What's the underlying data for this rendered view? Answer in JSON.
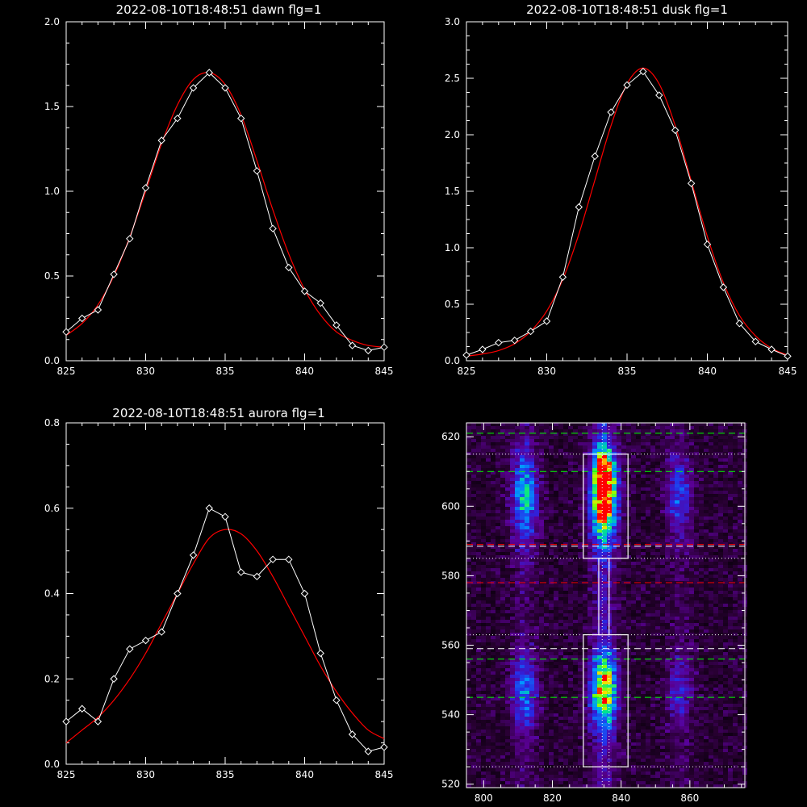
{
  "colors": {
    "background": "#000000",
    "axes": "#ffffff",
    "data": "#ffffff",
    "fit": "#ff0000",
    "guide_green": "#00ff00",
    "guide_red": "#ff0000"
  },
  "chart_data": [
    {
      "type": "line",
      "title": "2022-08-10T18:48:51 dawn flg=1",
      "xlim": [
        825,
        845
      ],
      "ylim": [
        0,
        2.0
      ],
      "xticks": [
        "825",
        "830",
        "835",
        "840",
        "845"
      ],
      "yticks": [
        "0.0",
        "0.5",
        "1.0",
        "1.5",
        "2.0"
      ],
      "xtick_values": [
        825,
        830,
        835,
        840,
        845
      ],
      "ytick_values": [
        0,
        0.5,
        1.0,
        1.5,
        2.0
      ],
      "grid": false,
      "series": [
        {
          "role": "data",
          "marker": "diamond",
          "color": "#ffffff",
          "x": [
            825,
            826,
            827,
            828,
            829,
            830,
            831,
            832,
            833,
            834,
            835,
            836,
            837,
            838,
            839,
            840,
            841,
            842,
            843,
            844,
            845
          ],
          "y": [
            0.17,
            0.25,
            0.3,
            0.51,
            0.72,
            1.02,
            1.3,
            1.43,
            1.61,
            1.7,
            1.61,
            1.43,
            1.12,
            0.78,
            0.55,
            0.41,
            0.34,
            0.21,
            0.09,
            0.06,
            0.08
          ]
        },
        {
          "role": "fit",
          "color": "#ff0000",
          "x": [
            825,
            826,
            827,
            828,
            829,
            830,
            831,
            832,
            833,
            834,
            835,
            836,
            837,
            838,
            839,
            840,
            841,
            842,
            843,
            844,
            845
          ],
          "y": [
            0.15,
            0.22,
            0.33,
            0.5,
            0.73,
            1.0,
            1.28,
            1.51,
            1.66,
            1.7,
            1.63,
            1.45,
            1.18,
            0.89,
            0.63,
            0.42,
            0.27,
            0.17,
            0.12,
            0.09,
            0.08
          ]
        }
      ]
    },
    {
      "type": "line",
      "title": "2022-08-10T18:48:51 dusk flg=1",
      "xlim": [
        825,
        845
      ],
      "ylim": [
        0,
        3.0
      ],
      "xticks": [
        "825",
        "830",
        "835",
        "840",
        "845"
      ],
      "yticks": [
        "0.0",
        "0.5",
        "1.0",
        "1.5",
        "2.0",
        "2.5",
        "3.0"
      ],
      "xtick_values": [
        825,
        830,
        835,
        840,
        845
      ],
      "ytick_values": [
        0,
        0.5,
        1.0,
        1.5,
        2.0,
        2.5,
        3.0
      ],
      "grid": false,
      "series": [
        {
          "role": "data",
          "marker": "diamond",
          "color": "#ffffff",
          "x": [
            825,
            826,
            827,
            828,
            829,
            830,
            831,
            832,
            833,
            834,
            835,
            836,
            837,
            838,
            839,
            840,
            841,
            842,
            843,
            844,
            845
          ],
          "y": [
            0.05,
            0.1,
            0.16,
            0.18,
            0.26,
            0.35,
            0.74,
            1.36,
            1.81,
            2.2,
            2.44,
            2.56,
            2.35,
            2.04,
            1.57,
            1.03,
            0.65,
            0.33,
            0.17,
            0.1,
            0.04
          ]
        },
        {
          "role": "fit",
          "color": "#ff0000",
          "x": [
            825,
            826,
            827,
            828,
            829,
            830,
            831,
            832,
            833,
            834,
            835,
            836,
            837,
            838,
            839,
            840,
            841,
            842,
            843,
            844,
            845
          ],
          "y": [
            0.04,
            0.06,
            0.09,
            0.15,
            0.26,
            0.44,
            0.72,
            1.12,
            1.6,
            2.08,
            2.45,
            2.59,
            2.45,
            2.08,
            1.59,
            1.1,
            0.69,
            0.4,
            0.22,
            0.11,
            0.05
          ]
        }
      ]
    },
    {
      "type": "line",
      "title": "2022-08-10T18:48:51 aurora flg=1",
      "xlim": [
        825,
        845
      ],
      "ylim": [
        0,
        0.8
      ],
      "xticks": [
        "825",
        "830",
        "835",
        "840",
        "845"
      ],
      "yticks": [
        "0.0",
        "0.2",
        "0.4",
        "0.6",
        "0.8"
      ],
      "xtick_values": [
        825,
        830,
        835,
        840,
        845
      ],
      "ytick_values": [
        0,
        0.2,
        0.4,
        0.6,
        0.8
      ],
      "grid": false,
      "series": [
        {
          "role": "data",
          "marker": "diamond",
          "color": "#ffffff",
          "x": [
            825,
            826,
            827,
            828,
            829,
            830,
            831,
            832,
            833,
            834,
            835,
            836,
            837,
            838,
            839,
            840,
            841,
            842,
            843,
            844,
            845
          ],
          "y": [
            0.1,
            0.13,
            0.1,
            0.2,
            0.27,
            0.29,
            0.31,
            0.4,
            0.49,
            0.6,
            0.58,
            0.45,
            0.44,
            0.48,
            0.48,
            0.4,
            0.26,
            0.15,
            0.07,
            0.03,
            0.04
          ]
        },
        {
          "role": "fit",
          "color": "#ff0000",
          "x": [
            825,
            826,
            827,
            828,
            829,
            830,
            831,
            832,
            833,
            834,
            835,
            836,
            837,
            838,
            839,
            840,
            841,
            842,
            843,
            844,
            845
          ],
          "y": [
            0.05,
            0.08,
            0.11,
            0.15,
            0.2,
            0.26,
            0.33,
            0.4,
            0.47,
            0.53,
            0.55,
            0.54,
            0.5,
            0.44,
            0.37,
            0.3,
            0.23,
            0.17,
            0.12,
            0.08,
            0.06
          ]
        }
      ]
    },
    {
      "type": "heatmap",
      "title": "",
      "xlim": [
        795,
        876
      ],
      "ylim": [
        519,
        624
      ],
      "xticks": [
        "800",
        "820",
        "840",
        "860"
      ],
      "yticks": [
        "520",
        "540",
        "560",
        "580",
        "600",
        "620"
      ],
      "xtick_values": [
        800,
        820,
        840,
        860
      ],
      "ytick_values": [
        520,
        540,
        560,
        580,
        600,
        620
      ],
      "colormap": "rainbow",
      "grid": false,
      "emission_columns": [
        {
          "x_center": 812,
          "intensity": 0.45
        },
        {
          "x_center": 835,
          "intensity": 1.0
        },
        {
          "x_center": 857,
          "intensity": 0.28
        }
      ],
      "emission_bands": [
        {
          "y_center": 603,
          "y_halfwidth": 12,
          "weight": 1.0
        },
        {
          "y_center": 547,
          "y_halfwidth": 10,
          "weight": 0.75
        }
      ],
      "boxes": [
        {
          "x": [
            829,
            842
          ],
          "y": [
            585,
            615
          ]
        },
        {
          "x": [
            829,
            842
          ],
          "y": [
            525,
            563
          ]
        },
        {
          "x": [
            833.5,
            836.5
          ],
          "y": [
            563,
            585
          ]
        }
      ],
      "vlines": [
        {
          "x": 834.5,
          "style": "dotted",
          "color": "#ffffff"
        },
        {
          "x": 836.5,
          "style": "dotted",
          "color": "#ffffff"
        }
      ],
      "hlines": [
        {
          "y": 621,
          "style": "dashed",
          "color": "#00ff00"
        },
        {
          "y": 610,
          "style": "dashed",
          "color": "#00ff00"
        },
        {
          "y": 556,
          "style": "dashed",
          "color": "#00ff00"
        },
        {
          "y": 545,
          "style": "dashed",
          "color": "#00ff00"
        },
        {
          "y": 615,
          "style": "dotted",
          "color": "#ffffff"
        },
        {
          "y": 585,
          "style": "dotted",
          "color": "#ffffff"
        },
        {
          "y": 563,
          "style": "dotted",
          "color": "#ffffff"
        },
        {
          "y": 525,
          "style": "dotted",
          "color": "#ffffff"
        },
        {
          "y": 588.5,
          "style": "dashed",
          "color": "#ffffff"
        },
        {
          "y": 559,
          "style": "dashed",
          "color": "#ffffff"
        },
        {
          "y": 589,
          "style": "dashed",
          "color": "#ff0000"
        },
        {
          "y": 578,
          "style": "dashed",
          "color": "#ff0000"
        }
      ]
    }
  ]
}
